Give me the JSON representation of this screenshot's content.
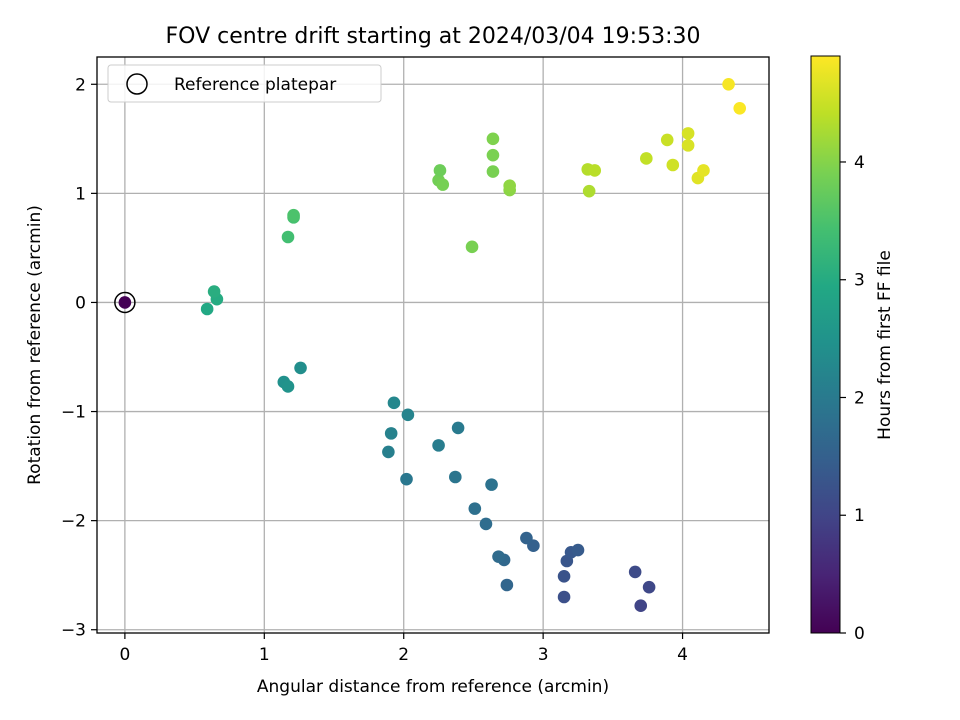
{
  "chart_data": {
    "type": "scatter",
    "title": "FOV centre drift starting at 2024/03/04 19:53:30",
    "xlabel": "Angular distance from reference (arcmin)",
    "ylabel": "Rotation from reference (arcmin)",
    "xlim": [
      -0.2,
      4.62
    ],
    "ylim": [
      -3.03,
      2.25
    ],
    "xticks": [
      0,
      1,
      2,
      3,
      4
    ],
    "yticks": [
      -3,
      -2,
      -1,
      0,
      1,
      2
    ],
    "ytick_labels": [
      "−3",
      "−2",
      "−1",
      "0",
      "1",
      "2"
    ],
    "grid": true,
    "legend": {
      "position": "upper-left",
      "label": "Reference platepar"
    },
    "colorbar": {
      "label": "Hours from first FF file",
      "colormap": "viridis",
      "range": [
        0,
        4.9
      ],
      "ticks": [
        0,
        1,
        2,
        3,
        4
      ]
    },
    "reference_point": {
      "x": 0,
      "y": 0,
      "hours": 0
    },
    "points": [
      {
        "x": 3.7,
        "y": -2.78,
        "hours": 1.0
      },
      {
        "x": 3.76,
        "y": -2.61,
        "hours": 1.05
      },
      {
        "x": 3.66,
        "y": -2.47,
        "hours": 1.1
      },
      {
        "x": 3.15,
        "y": -2.7,
        "hours": 1.2
      },
      {
        "x": 3.15,
        "y": -2.51,
        "hours": 1.25
      },
      {
        "x": 3.17,
        "y": -2.37,
        "hours": 1.3
      },
      {
        "x": 3.2,
        "y": -2.29,
        "hours": 1.35
      },
      {
        "x": 3.25,
        "y": -2.27,
        "hours": 1.4
      },
      {
        "x": 2.93,
        "y": -2.23,
        "hours": 1.5
      },
      {
        "x": 2.88,
        "y": -2.16,
        "hours": 1.55
      },
      {
        "x": 2.74,
        "y": -2.59,
        "hours": 1.6
      },
      {
        "x": 2.72,
        "y": -2.36,
        "hours": 1.65
      },
      {
        "x": 2.68,
        "y": -2.33,
        "hours": 1.7
      },
      {
        "x": 2.59,
        "y": -2.03,
        "hours": 1.75
      },
      {
        "x": 2.51,
        "y": -1.89,
        "hours": 1.8
      },
      {
        "x": 2.63,
        "y": -1.67,
        "hours": 1.85
      },
      {
        "x": 2.37,
        "y": -1.6,
        "hours": 1.9
      },
      {
        "x": 2.02,
        "y": -1.62,
        "hours": 1.95
      },
      {
        "x": 2.39,
        "y": -1.15,
        "hours": 2.0
      },
      {
        "x": 2.25,
        "y": -1.31,
        "hours": 2.05
      },
      {
        "x": 1.89,
        "y": -1.37,
        "hours": 2.1
      },
      {
        "x": 1.91,
        "y": -1.2,
        "hours": 2.15
      },
      {
        "x": 2.03,
        "y": -1.03,
        "hours": 2.2
      },
      {
        "x": 1.93,
        "y": -0.92,
        "hours": 2.25
      },
      {
        "x": 1.26,
        "y": -0.6,
        "hours": 2.4
      },
      {
        "x": 1.14,
        "y": -0.73,
        "hours": 2.45
      },
      {
        "x": 1.17,
        "y": -0.77,
        "hours": 2.5
      },
      {
        "x": 0.59,
        "y": -0.06,
        "hours": 2.95
      },
      {
        "x": 0.66,
        "y": 0.03,
        "hours": 3.0
      },
      {
        "x": 0.64,
        "y": 0.1,
        "hours": 3.05
      },
      {
        "x": 1.17,
        "y": 0.6,
        "hours": 3.4
      },
      {
        "x": 1.21,
        "y": 0.78,
        "hours": 3.45
      },
      {
        "x": 1.21,
        "y": 0.8,
        "hours": 3.5
      },
      {
        "x": 2.49,
        "y": 0.51,
        "hours": 3.9
      },
      {
        "x": 2.25,
        "y": 1.12,
        "hours": 3.85
      },
      {
        "x": 2.28,
        "y": 1.08,
        "hours": 3.88
      },
      {
        "x": 2.26,
        "y": 1.21,
        "hours": 3.8
      },
      {
        "x": 2.64,
        "y": 1.2,
        "hours": 3.9
      },
      {
        "x": 2.64,
        "y": 1.35,
        "hours": 3.92
      },
      {
        "x": 2.64,
        "y": 1.5,
        "hours": 3.95
      },
      {
        "x": 2.76,
        "y": 1.03,
        "hours": 4.05
      },
      {
        "x": 2.76,
        "y": 1.07,
        "hours": 4.08
      },
      {
        "x": 3.33,
        "y": 1.02,
        "hours": 4.3
      },
      {
        "x": 3.32,
        "y": 1.22,
        "hours": 4.35
      },
      {
        "x": 3.37,
        "y": 1.21,
        "hours": 4.38
      },
      {
        "x": 3.74,
        "y": 1.32,
        "hours": 4.45
      },
      {
        "x": 3.89,
        "y": 1.49,
        "hours": 4.5
      },
      {
        "x": 3.93,
        "y": 1.26,
        "hours": 4.55
      },
      {
        "x": 4.04,
        "y": 1.55,
        "hours": 4.6
      },
      {
        "x": 4.04,
        "y": 1.44,
        "hours": 4.62
      },
      {
        "x": 4.11,
        "y": 1.14,
        "hours": 4.68
      },
      {
        "x": 4.15,
        "y": 1.21,
        "hours": 4.72
      },
      {
        "x": 4.33,
        "y": 2.0,
        "hours": 4.85
      },
      {
        "x": 4.41,
        "y": 1.78,
        "hours": 4.88
      }
    ]
  }
}
